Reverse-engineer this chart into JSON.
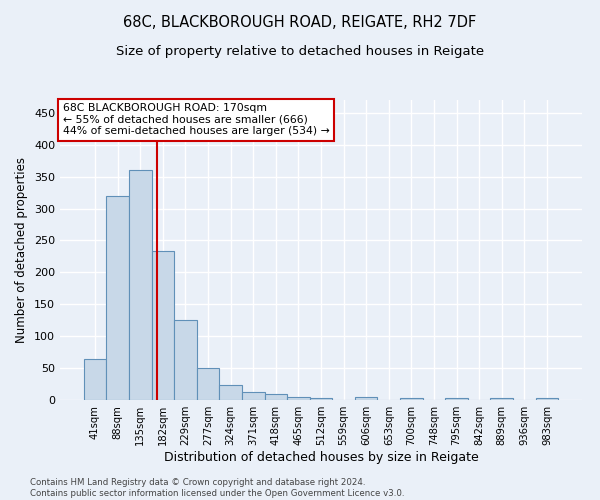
{
  "title1": "68C, BLACKBOROUGH ROAD, REIGATE, RH2 7DF",
  "title2": "Size of property relative to detached houses in Reigate",
  "xlabel": "Distribution of detached houses by size in Reigate",
  "ylabel": "Number of detached properties",
  "footnote": "Contains HM Land Registry data © Crown copyright and database right 2024.\nContains public sector information licensed under the Open Government Licence v3.0.",
  "bins": [
    "41sqm",
    "88sqm",
    "135sqm",
    "182sqm",
    "229sqm",
    "277sqm",
    "324sqm",
    "371sqm",
    "418sqm",
    "465sqm",
    "512sqm",
    "559sqm",
    "606sqm",
    "653sqm",
    "700sqm",
    "748sqm",
    "795sqm",
    "842sqm",
    "889sqm",
    "936sqm",
    "983sqm"
  ],
  "bar_heights": [
    65,
    320,
    360,
    233,
    125,
    50,
    23,
    13,
    9,
    5,
    3,
    0,
    4,
    0,
    3,
    0,
    3,
    0,
    3,
    0,
    3
  ],
  "bar_color": "#c8d8e8",
  "bar_edge_color": "#6090b8",
  "vline_color": "#cc0000",
  "annotation_text": "68C BLACKBOROUGH ROAD: 170sqm\n← 55% of detached houses are smaller (666)\n44% of semi-detached houses are larger (534) →",
  "annotation_box_color": "white",
  "annotation_box_edge": "#cc0000",
  "ylim": [
    0,
    470
  ],
  "yticks": [
    0,
    50,
    100,
    150,
    200,
    250,
    300,
    350,
    400,
    450
  ],
  "bg_color": "#eaf0f8",
  "grid_color": "white",
  "title_fontsize": 10.5,
  "subtitle_fontsize": 9.5,
  "bar_width": 1.0,
  "property_sqm": 170,
  "vline_bin_index": 2.745
}
